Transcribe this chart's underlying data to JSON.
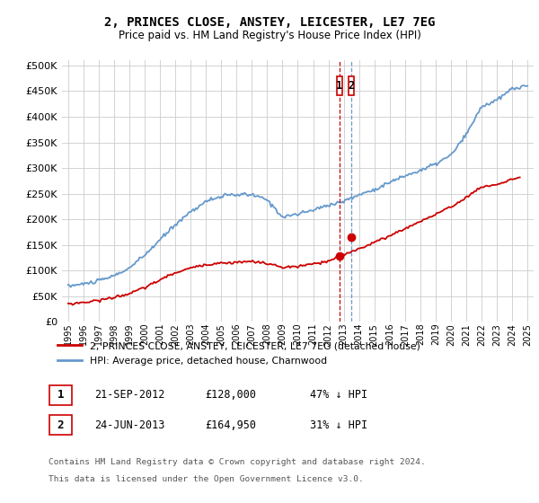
{
  "title": "2, PRINCES CLOSE, ANSTEY, LEICESTER, LE7 7EG",
  "subtitle": "Price paid vs. HM Land Registry's House Price Index (HPI)",
  "legend_label_red": "2, PRINCES CLOSE, ANSTEY, LEICESTER, LE7 7EG (detached house)",
  "legend_label_blue": "HPI: Average price, detached house, Charnwood",
  "footer_line1": "Contains HM Land Registry data © Crown copyright and database right 2024.",
  "footer_line2": "This data is licensed under the Open Government Licence v3.0.",
  "transaction_1_label": "1",
  "transaction_1_date": "21-SEP-2012",
  "transaction_1_price": "£128,000",
  "transaction_1_hpi": "47% ↓ HPI",
  "transaction_1_x": 2012.72,
  "transaction_1_y": 128000,
  "transaction_2_label": "2",
  "transaction_2_date": "24-JUN-2013",
  "transaction_2_price": "£164,950",
  "transaction_2_hpi": "31% ↓ HPI",
  "transaction_2_x": 2013.47,
  "transaction_2_y": 164950,
  "ylim": [
    0,
    510000
  ],
  "yticks": [
    0,
    50000,
    100000,
    150000,
    200000,
    250000,
    300000,
    350000,
    400000,
    450000,
    500000
  ],
  "xlim_start": 1994.6,
  "xlim_end": 2025.4,
  "red_color": "#cc0000",
  "blue_color": "#6699cc",
  "grid_color": "#cccccc",
  "bg_color": "#ffffff"
}
